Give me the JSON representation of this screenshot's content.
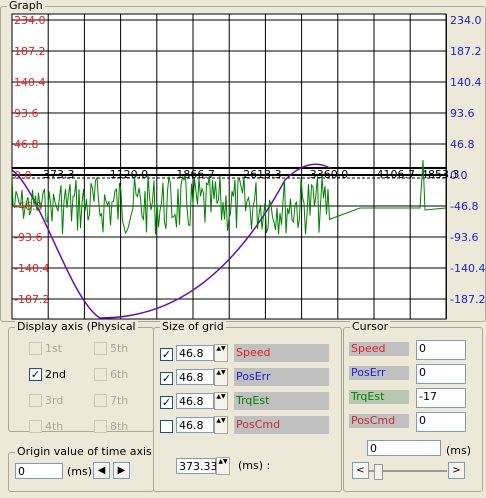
{
  "graph": {
    "title": "Graph",
    "left_axis": [
      "234.0",
      "187.2",
      "140.4",
      "93.6",
      "46.8",
      "0.0",
      "-46.8",
      "-93.6",
      "-140.4",
      "-187.2"
    ],
    "right_axis": [
      "234.0",
      "187.2",
      "140.4",
      "93.6",
      "46.8",
      "0.0",
      "-46.8",
      "-93.6",
      "-140.4",
      "-187.2"
    ],
    "time_labels": [
      "373.3",
      "1120.0",
      "1866.7",
      "2613.3",
      "3360.0",
      "4106.7",
      "4853.3"
    ]
  },
  "display_axis": {
    "title": "Display axis (Physical",
    "items": [
      {
        "label": "1st",
        "checked": false
      },
      {
        "label": "2nd",
        "checked": true
      },
      {
        "label": "3rd",
        "checked": false
      },
      {
        "label": "4th",
        "checked": false
      },
      {
        "label": "5th",
        "checked": false
      },
      {
        "label": "6th",
        "checked": false
      },
      {
        "label": "7th",
        "checked": false
      },
      {
        "label": "8th",
        "checked": false
      }
    ]
  },
  "origin": {
    "title": "Origin value of time axis",
    "value": "0",
    "unit": "(ms)"
  },
  "size_of_grid": {
    "title": "Size of grid",
    "rows": [
      {
        "checked": true,
        "value": "46.8",
        "label": "Speed"
      },
      {
        "checked": true,
        "value": "46.8",
        "label": "PosErr"
      },
      {
        "checked": true,
        "value": "46.8",
        "label": "TrqEst"
      },
      {
        "checked": false,
        "value": "46.8",
        "label": "PosCmd"
      }
    ],
    "time_value": "373.33",
    "unit": "(ms) :"
  },
  "cursor": {
    "title": "Cursor",
    "rows": [
      {
        "label": "Speed",
        "value": "0"
      },
      {
        "label": "PosErr",
        "value": "0"
      },
      {
        "label": "TrqEst",
        "value": "-17"
      },
      {
        "label": "PosCmd",
        "value": "0"
      }
    ],
    "time_value": "0",
    "unit": "(ms)"
  }
}
